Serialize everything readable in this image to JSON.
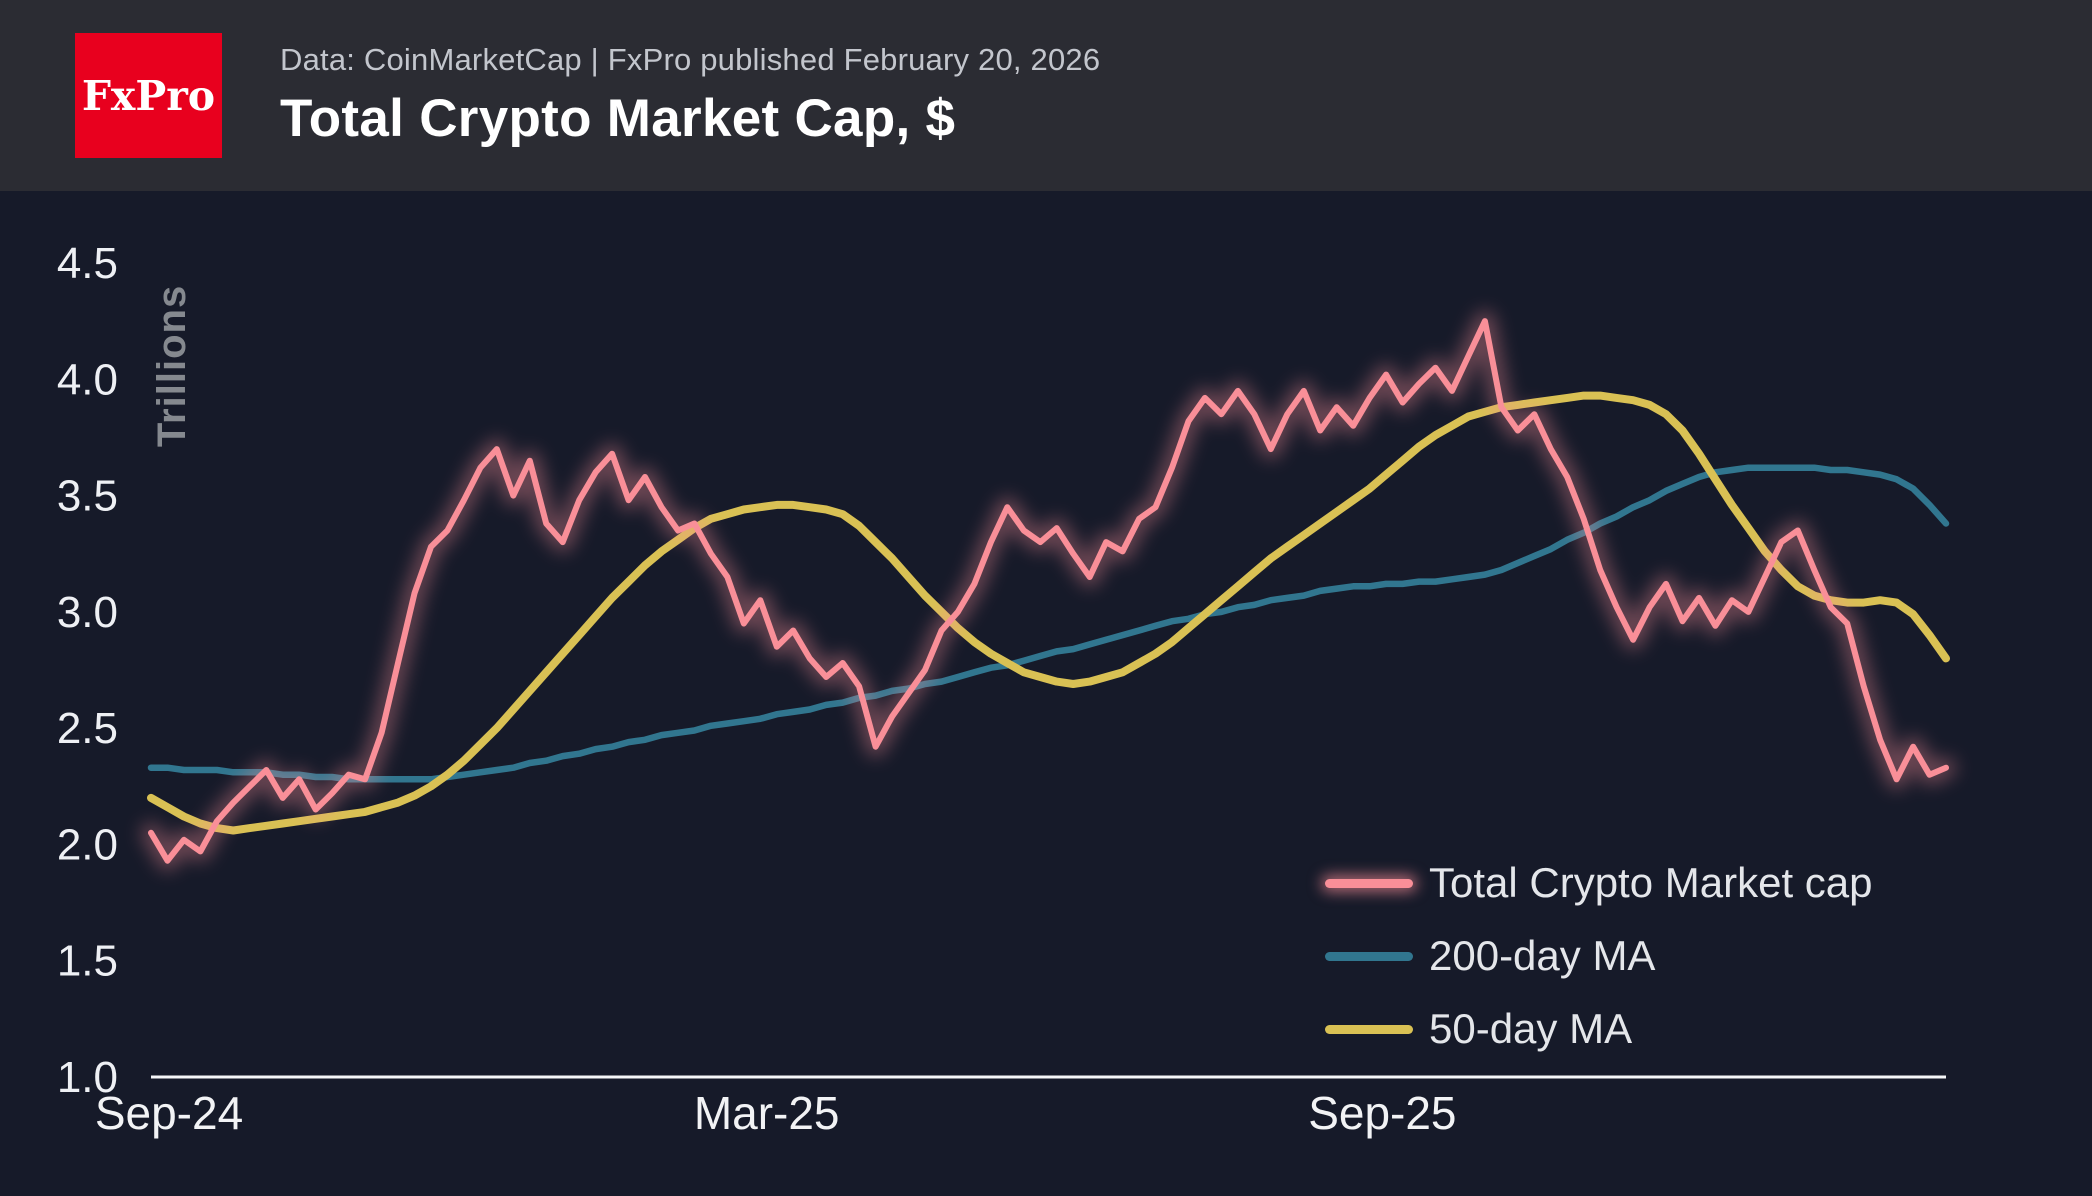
{
  "header": {
    "logo_text": "FxPro",
    "source_line": "Data: CoinMarketCap | FxPro published February 20, 2026",
    "title": "Total Crypto Market Cap, $"
  },
  "colors": {
    "background": "#161a29",
    "header_background": "#2b2c33",
    "logo_red": "#e8001e",
    "market_cap_line": "#f98f98",
    "ma200_line": "#31768f",
    "ma50_line": "#d9c154",
    "axis": "#f5f6f8"
  },
  "chart_data": {
    "type": "line",
    "title": "Total Crypto Market Cap, $",
    "xlabel": "",
    "ylabel": "Trillions",
    "ylim": [
      1.0,
      4.5
    ],
    "y_ticks": [
      4.5,
      4.0,
      3.5,
      3.0,
      2.5,
      2.0,
      1.5,
      1.0
    ],
    "x_ticks": [
      {
        "label": "Sep-24",
        "pos": 0.0
      },
      {
        "label": "Mar-25",
        "pos": 0.343
      },
      {
        "label": "Sep-25",
        "pos": 0.686
      }
    ],
    "grid": false,
    "legend_position": "bottom-right",
    "series": [
      {
        "name": "Total Crypto Market cap",
        "color": "#f98f98",
        "glow": true,
        "width": 6,
        "values": [
          2.05,
          1.93,
          2.02,
          1.97,
          2.1,
          2.18,
          2.25,
          2.32,
          2.2,
          2.28,
          2.15,
          2.22,
          2.3,
          2.28,
          2.48,
          2.78,
          3.08,
          3.28,
          3.35,
          3.48,
          3.62,
          3.7,
          3.5,
          3.65,
          3.38,
          3.3,
          3.48,
          3.6,
          3.68,
          3.48,
          3.58,
          3.45,
          3.35,
          3.38,
          3.25,
          3.15,
          2.95,
          3.05,
          2.85,
          2.92,
          2.8,
          2.72,
          2.78,
          2.68,
          2.42,
          2.55,
          2.65,
          2.75,
          2.92,
          3.0,
          3.12,
          3.3,
          3.45,
          3.35,
          3.3,
          3.36,
          3.25,
          3.15,
          3.3,
          3.26,
          3.4,
          3.45,
          3.62,
          3.82,
          3.92,
          3.85,
          3.95,
          3.85,
          3.7,
          3.85,
          3.95,
          3.78,
          3.88,
          3.8,
          3.92,
          4.02,
          3.9,
          3.98,
          4.05,
          3.95,
          4.1,
          4.25,
          3.88,
          3.78,
          3.85,
          3.7,
          3.58,
          3.4,
          3.18,
          3.02,
          2.88,
          3.02,
          3.12,
          2.96,
          3.06,
          2.94,
          3.05,
          3.0,
          3.15,
          3.3,
          3.35,
          3.18,
          3.02,
          2.95,
          2.68,
          2.45,
          2.28,
          2.42,
          2.3,
          2.33
        ]
      },
      {
        "name": "200-day MA",
        "color": "#31768f",
        "glow": false,
        "width": 6.5,
        "values": [
          2.33,
          2.33,
          2.32,
          2.32,
          2.32,
          2.31,
          2.31,
          2.31,
          2.3,
          2.3,
          2.29,
          2.29,
          2.28,
          2.28,
          2.28,
          2.28,
          2.28,
          2.28,
          2.29,
          2.3,
          2.31,
          2.32,
          2.33,
          2.35,
          2.36,
          2.38,
          2.39,
          2.41,
          2.42,
          2.44,
          2.45,
          2.47,
          2.48,
          2.49,
          2.51,
          2.52,
          2.53,
          2.54,
          2.56,
          2.57,
          2.58,
          2.6,
          2.61,
          2.63,
          2.64,
          2.66,
          2.67,
          2.69,
          2.7,
          2.72,
          2.74,
          2.76,
          2.77,
          2.79,
          2.81,
          2.83,
          2.84,
          2.86,
          2.88,
          2.9,
          2.92,
          2.94,
          2.96,
          2.97,
          2.99,
          3.0,
          3.02,
          3.03,
          3.05,
          3.06,
          3.07,
          3.09,
          3.1,
          3.11,
          3.11,
          3.12,
          3.12,
          3.13,
          3.13,
          3.14,
          3.15,
          3.16,
          3.18,
          3.21,
          3.24,
          3.27,
          3.31,
          3.34,
          3.38,
          3.41,
          3.45,
          3.48,
          3.52,
          3.55,
          3.58,
          3.6,
          3.61,
          3.62,
          3.62,
          3.62,
          3.62,
          3.62,
          3.61,
          3.61,
          3.6,
          3.59,
          3.57,
          3.53,
          3.46,
          3.38
        ]
      },
      {
        "name": "50-day MA",
        "color": "#d9c154",
        "glow": false,
        "width": 8,
        "values": [
          2.2,
          2.16,
          2.12,
          2.09,
          2.07,
          2.06,
          2.07,
          2.08,
          2.09,
          2.1,
          2.11,
          2.12,
          2.13,
          2.14,
          2.16,
          2.18,
          2.21,
          2.25,
          2.3,
          2.36,
          2.43,
          2.5,
          2.58,
          2.66,
          2.74,
          2.82,
          2.9,
          2.98,
          3.06,
          3.13,
          3.2,
          3.26,
          3.31,
          3.36,
          3.4,
          3.42,
          3.44,
          3.45,
          3.46,
          3.46,
          3.45,
          3.44,
          3.42,
          3.37,
          3.3,
          3.23,
          3.15,
          3.07,
          3.0,
          2.93,
          2.87,
          2.82,
          2.78,
          2.74,
          2.72,
          2.7,
          2.69,
          2.7,
          2.72,
          2.74,
          2.78,
          2.82,
          2.87,
          2.93,
          2.99,
          3.05,
          3.11,
          3.17,
          3.23,
          3.28,
          3.33,
          3.38,
          3.43,
          3.48,
          3.53,
          3.59,
          3.65,
          3.71,
          3.76,
          3.8,
          3.84,
          3.86,
          3.88,
          3.89,
          3.9,
          3.91,
          3.92,
          3.93,
          3.93,
          3.92,
          3.91,
          3.89,
          3.85,
          3.78,
          3.68,
          3.57,
          3.46,
          3.36,
          3.26,
          3.18,
          3.11,
          3.07,
          3.05,
          3.04,
          3.04,
          3.05,
          3.04,
          2.99,
          2.9,
          2.8
        ]
      }
    ]
  }
}
